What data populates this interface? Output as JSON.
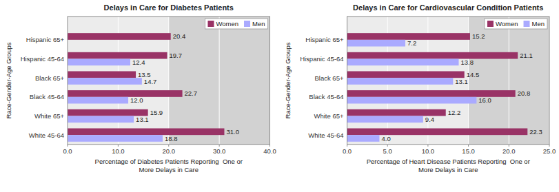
{
  "chart_data": [
    {
      "type": "bar",
      "orientation": "horizontal",
      "title": "Delays in Care for Diabetes Patients",
      "categories": [
        "Hispanic 65+",
        "Hispanic 45-64",
        "Black 65+",
        "Black 45-64",
        "White 65+",
        "White 45-64"
      ],
      "series": [
        {
          "name": "Women",
          "color": "#993366",
          "values": [
            20.4,
            19.7,
            13.5,
            22.7,
            15.9,
            31.0
          ],
          "value_labels": [
            "20.4",
            "19.7",
            "13.5",
            "22.7",
            "15.9",
            "31.0"
          ]
        },
        {
          "name": "Men",
          "color": "#aaaaff",
          "values": [
            null,
            12.4,
            14.7,
            12.0,
            13.1,
            18.8
          ],
          "value_labels": [
            null,
            "12.4",
            "14.7",
            "12.0",
            "13.1",
            "18.8"
          ]
        }
      ],
      "xlim": [
        0,
        40
      ],
      "xticks": [
        {
          "value": 0,
          "label": "0.0"
        },
        {
          "value": 10,
          "label": "10.0"
        },
        {
          "value": 20,
          "label": "20.0"
        },
        {
          "value": 30,
          "label": "30.0"
        },
        {
          "value": 40,
          "label": "40.0"
        }
      ],
      "xlabel": "Percentage of Diabetes Patients Reporting  One or\nMore Delays in Care",
      "ylabel": "Race-Gender-Age Groups",
      "shade_from": 20.0,
      "grid": true,
      "legend": "upper right",
      "data_labels": true
    },
    {
      "type": "bar",
      "orientation": "horizontal",
      "title": "Delays in Care for Cardiovascular Condition Patients",
      "categories": [
        "Hispanic 65+",
        "Hispanic 45-64",
        "Black 65+",
        "Black 45-64",
        "White 65+",
        "White 45-64"
      ],
      "series": [
        {
          "name": "Women",
          "color": "#993366",
          "values": [
            15.2,
            21.1,
            14.5,
            20.8,
            12.2,
            22.3
          ],
          "value_labels": [
            "15.2",
            "21.1",
            "14.5",
            "20.8",
            "12.2",
            "22.3"
          ]
        },
        {
          "name": "Men",
          "color": "#aaaaff",
          "values": [
            7.2,
            13.8,
            13.1,
            16.0,
            9.4,
            4.0
          ],
          "value_labels": [
            "7.2",
            "13.8",
            "13.1",
            "16.0",
            "9.4",
            "4.0"
          ]
        }
      ],
      "xlim": [
        0,
        25
      ],
      "xticks": [
        {
          "value": 0,
          "label": "0.0"
        },
        {
          "value": 5,
          "label": "5.0"
        },
        {
          "value": 10,
          "label": "10.0"
        },
        {
          "value": 15,
          "label": "15.0"
        },
        {
          "value": 20,
          "label": "20.0"
        },
        {
          "value": 25,
          "label": "25.0"
        }
      ],
      "xlabel": "Percentage of Heart Disease Patients Reporting  One or\nMore Delays in Care",
      "ylabel": "Race-Gender-Age Groups",
      "shade_from": 15.0,
      "grid": true,
      "legend": "upper right",
      "data_labels": true
    }
  ]
}
